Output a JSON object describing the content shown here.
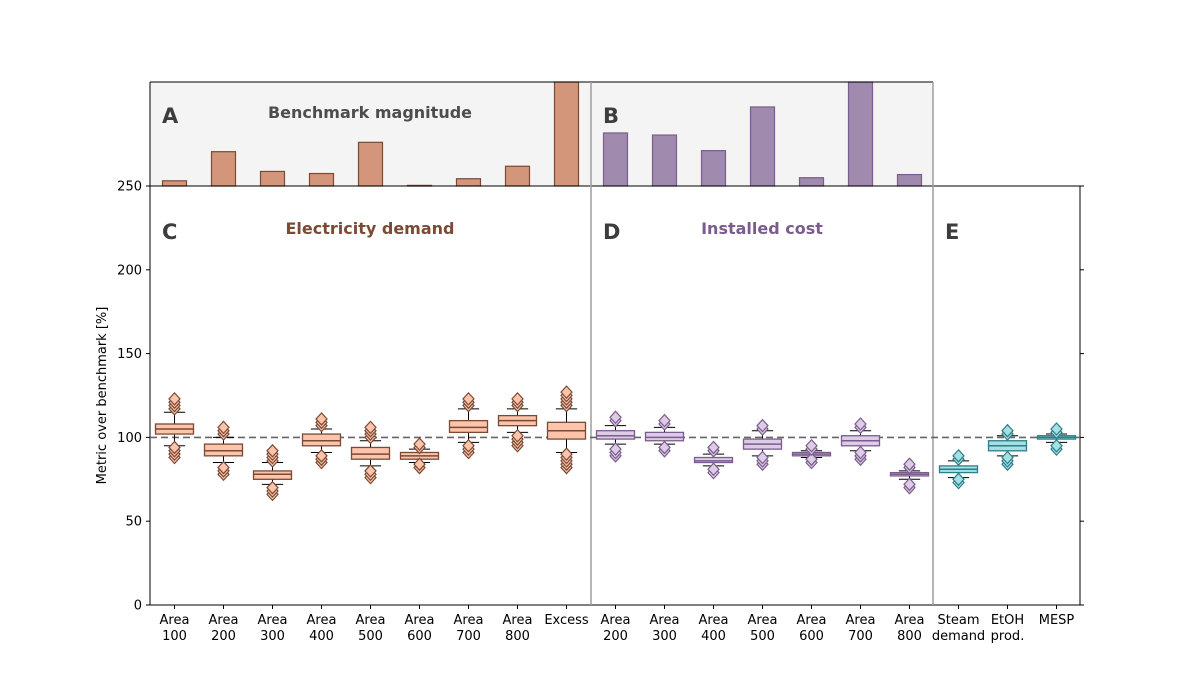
{
  "chart_data": {
    "type": "boxplot",
    "ylabel": "Metric over benchmark [%]",
    "ylim": [
      0,
      250
    ],
    "yticks": [
      "0",
      "50",
      "100",
      "150",
      "200",
      "250"
    ],
    "reference_line": 100,
    "colors": {
      "electricity_fill": "#fbc4ab",
      "electricity_edge": "#7a4a35",
      "electricity_bar": "#d4967a",
      "cost_fill": "#dccce6",
      "cost_edge": "#7a5c8e",
      "cost_bar": "#a08aad",
      "steam_fill": "#a7dfe2",
      "steam_edge": "#2a7f88",
      "panel_bg": "#f4f4f4",
      "divider": "#9e9e9e",
      "ref_line": "#666666"
    },
    "panels": [
      {
        "letter": "A",
        "title": "Benchmark magnitude"
      },
      {
        "letter": "B",
        "title": ""
      },
      {
        "letter": "C",
        "title": "Electricity demand"
      },
      {
        "letter": "D",
        "title": "Installed cost"
      },
      {
        "letter": "E",
        "title": ""
      }
    ],
    "benchmark_bars": {
      "electricity": [
        0.05,
        0.33,
        0.14,
        0.12,
        0.42,
        0.005,
        0.07,
        0.19,
        1.0
      ],
      "installed_cost": [
        0.51,
        0.49,
        0.34,
        0.76,
        0.08,
        1.0,
        0.11
      ]
    },
    "groups": [
      {
        "name": "Electricity demand",
        "series": "electricity",
        "boxes": [
          {
            "label": [
              "Area",
              "100"
            ],
            "whislo": 95,
            "q1": 102,
            "med": 105,
            "q3": 108,
            "whishi": 115,
            "fliers": [
              88,
              90,
              92,
              94,
              117,
              119,
              121,
              123
            ]
          },
          {
            "label": [
              "Area",
              "200"
            ],
            "whislo": 85,
            "q1": 89,
            "med": 92,
            "q3": 96,
            "whishi": 100,
            "fliers": [
              78,
              80,
              82,
              102,
              104,
              106
            ]
          },
          {
            "label": [
              "Area",
              "300"
            ],
            "whislo": 72,
            "q1": 75,
            "med": 78,
            "q3": 80,
            "whishi": 85,
            "fliers": [
              66,
              68,
              70,
              86,
              88,
              90,
              92
            ]
          },
          {
            "label": [
              "Area",
              "400"
            ],
            "whislo": 91,
            "q1": 95,
            "med": 98,
            "q3": 102,
            "whishi": 105,
            "fliers": [
              85,
              87,
              89,
              107,
              109,
              111
            ]
          },
          {
            "label": [
              "Area",
              "500"
            ],
            "whislo": 83,
            "q1": 87,
            "med": 90,
            "q3": 94,
            "whishi": 98,
            "fliers": [
              76,
              78,
              80,
              100,
              102,
              104,
              106
            ]
          },
          {
            "label": [
              "Area",
              "600"
            ],
            "whislo": 85,
            "q1": 87,
            "med": 89,
            "q3": 91,
            "whishi": 93,
            "fliers": [
              82,
              84,
              94,
              96
            ]
          },
          {
            "label": [
              "Area",
              "700"
            ],
            "whislo": 97,
            "q1": 103,
            "med": 106,
            "q3": 110,
            "whishi": 117,
            "fliers": [
              91,
              93,
              95,
              119,
              121,
              123
            ]
          },
          {
            "label": [
              "Area",
              "800"
            ],
            "whislo": 103,
            "q1": 107,
            "med": 110,
            "q3": 113,
            "whishi": 117,
            "fliers": [
              95,
              97,
              99,
              101,
              119,
              121,
              123
            ]
          },
          {
            "label": [
              "Excess",
              ""
            ],
            "whislo": 91,
            "q1": 99,
            "med": 104,
            "q3": 109,
            "whishi": 117,
            "fliers": [
              82,
              84,
              86,
              88,
              90,
              119,
              121,
              123,
              125,
              127
            ]
          }
        ]
      },
      {
        "name": "Installed cost",
        "series": "cost",
        "boxes": [
          {
            "label": [
              "Area",
              "200"
            ],
            "whislo": 96,
            "q1": 99,
            "med": 101,
            "q3": 104,
            "whishi": 107,
            "fliers": [
              89,
              91,
              93,
              110,
              112
            ]
          },
          {
            "label": [
              "Area",
              "300"
            ],
            "whislo": 96,
            "q1": 98,
            "med": 100,
            "q3": 103,
            "whishi": 106,
            "fliers": [
              92,
              94,
              108,
              110
            ]
          },
          {
            "label": [
              "Area",
              "400"
            ],
            "whislo": 83,
            "q1": 85,
            "med": 86,
            "q3": 88,
            "whishi": 90,
            "fliers": [
              79,
              81,
              92,
              94
            ]
          },
          {
            "label": [
              "Area",
              "500"
            ],
            "whislo": 89,
            "q1": 93,
            "med": 96,
            "q3": 99,
            "whishi": 104,
            "fliers": [
              84,
              86,
              88,
              105,
              107
            ]
          },
          {
            "label": [
              "Area",
              "600"
            ],
            "whislo": 88,
            "q1": 89,
            "med": 90,
            "q3": 91,
            "whishi": 92,
            "fliers": [
              85,
              87,
              93,
              95
            ]
          },
          {
            "label": [
              "Area",
              "700"
            ],
            "whislo": 92,
            "q1": 95,
            "med": 98,
            "q3": 101,
            "whishi": 104,
            "fliers": [
              87,
              89,
              91,
              106,
              108
            ]
          },
          {
            "label": [
              "Area",
              "800"
            ],
            "whislo": 75,
            "q1": 77,
            "med": 78,
            "q3": 79,
            "whishi": 80,
            "fliers": [
              70,
              72,
              82,
              84
            ]
          }
        ]
      },
      {
        "name": "Steam",
        "series": "steam",
        "boxes": [
          {
            "label": [
              "Steam",
              "demand"
            ],
            "whislo": 76,
            "q1": 79,
            "med": 81,
            "q3": 83,
            "whishi": 86,
            "fliers": [
              73,
              75,
              87,
              89
            ]
          },
          {
            "label": [
              "EtOH",
              "prod."
            ],
            "whislo": 89,
            "q1": 92,
            "med": 95,
            "q3": 98,
            "whishi": 101,
            "fliers": [
              84,
              86,
              88,
              102,
              104
            ]
          },
          {
            "label": [
              "MESP",
              ""
            ],
            "whislo": 97,
            "q1": 99,
            "med": 100,
            "q3": 101,
            "whishi": 102,
            "fliers": [
              93,
              95,
              103,
              105
            ]
          }
        ]
      }
    ]
  }
}
